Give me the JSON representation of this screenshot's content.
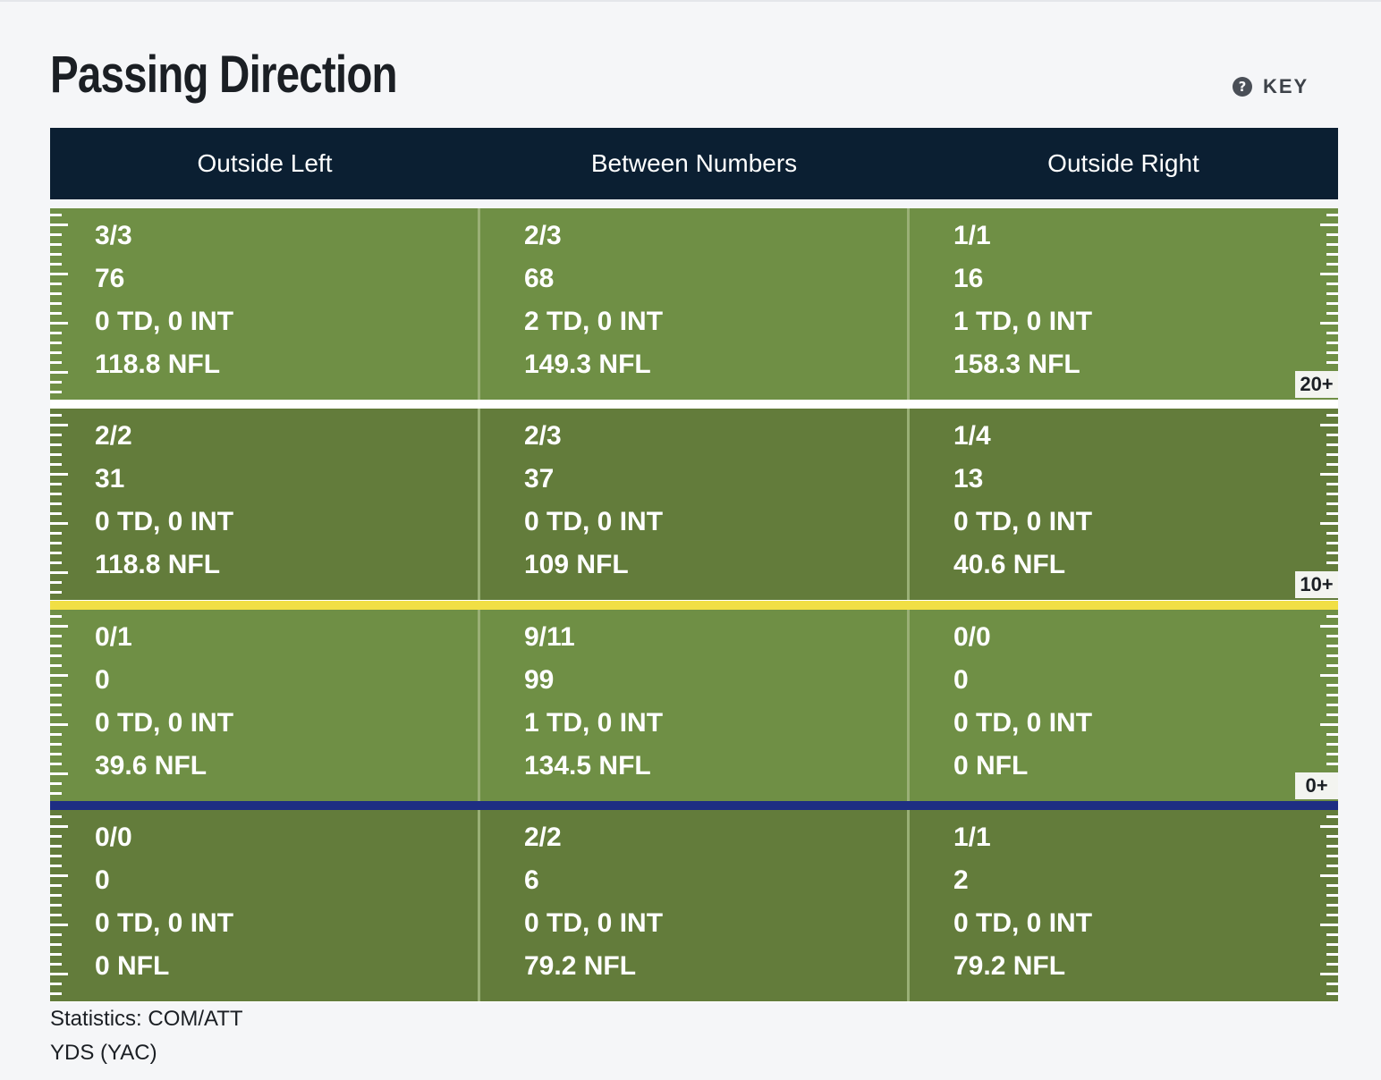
{
  "page": {
    "title": "Passing Direction",
    "key_label": "KEY",
    "key_icon": "question-circle-icon"
  },
  "columns": [
    "Outside Left",
    "Between Numbers",
    "Outside Right"
  ],
  "zones": [
    {
      "yard_tag": "20+",
      "cells": [
        [
          "3/3",
          "76",
          "0 TD, 0 INT",
          "118.8 NFL"
        ],
        [
          "2/3",
          "68",
          "2 TD, 0 INT",
          "149.3 NFL"
        ],
        [
          "1/1",
          "16",
          "1 TD, 0 INT",
          "158.3 NFL"
        ]
      ]
    },
    {
      "yard_tag": "10+",
      "cells": [
        [
          "2/2",
          "31",
          "0 TD, 0 INT",
          "118.8 NFL"
        ],
        [
          "2/3",
          "37",
          "0 TD, 0 INT",
          "109 NFL"
        ],
        [
          "1/4",
          "13",
          "0 TD, 0 INT",
          "40.6 NFL"
        ]
      ]
    },
    {
      "yard_tag": "0+",
      "cells": [
        [
          "0/1",
          "0",
          "0 TD, 0 INT",
          "39.6 NFL"
        ],
        [
          "9/11",
          "99",
          "1 TD, 0 INT",
          "134.5 NFL"
        ],
        [
          "0/0",
          "0",
          "0 TD, 0 INT",
          "0 NFL"
        ]
      ]
    },
    {
      "yard_tag": "",
      "cells": [
        [
          "0/0",
          "0",
          "0 TD, 0 INT",
          "0 NFL"
        ],
        [
          "2/2",
          "6",
          "0 TD, 0 INT",
          "79.2 NFL"
        ],
        [
          "1/1",
          "2",
          "0 TD, 0 INT",
          "79.2 NFL"
        ]
      ]
    }
  ],
  "footnotes": [
    "Statistics: COM/ATT",
    "YDS (YAC)"
  ],
  "colors": {
    "header_bg": "#0b1f32",
    "field_light": "#6f8f45",
    "field_dark": "#637c3b",
    "line_of_scrimmage": "#1e2e83",
    "first_down_line": "#f1df45"
  }
}
